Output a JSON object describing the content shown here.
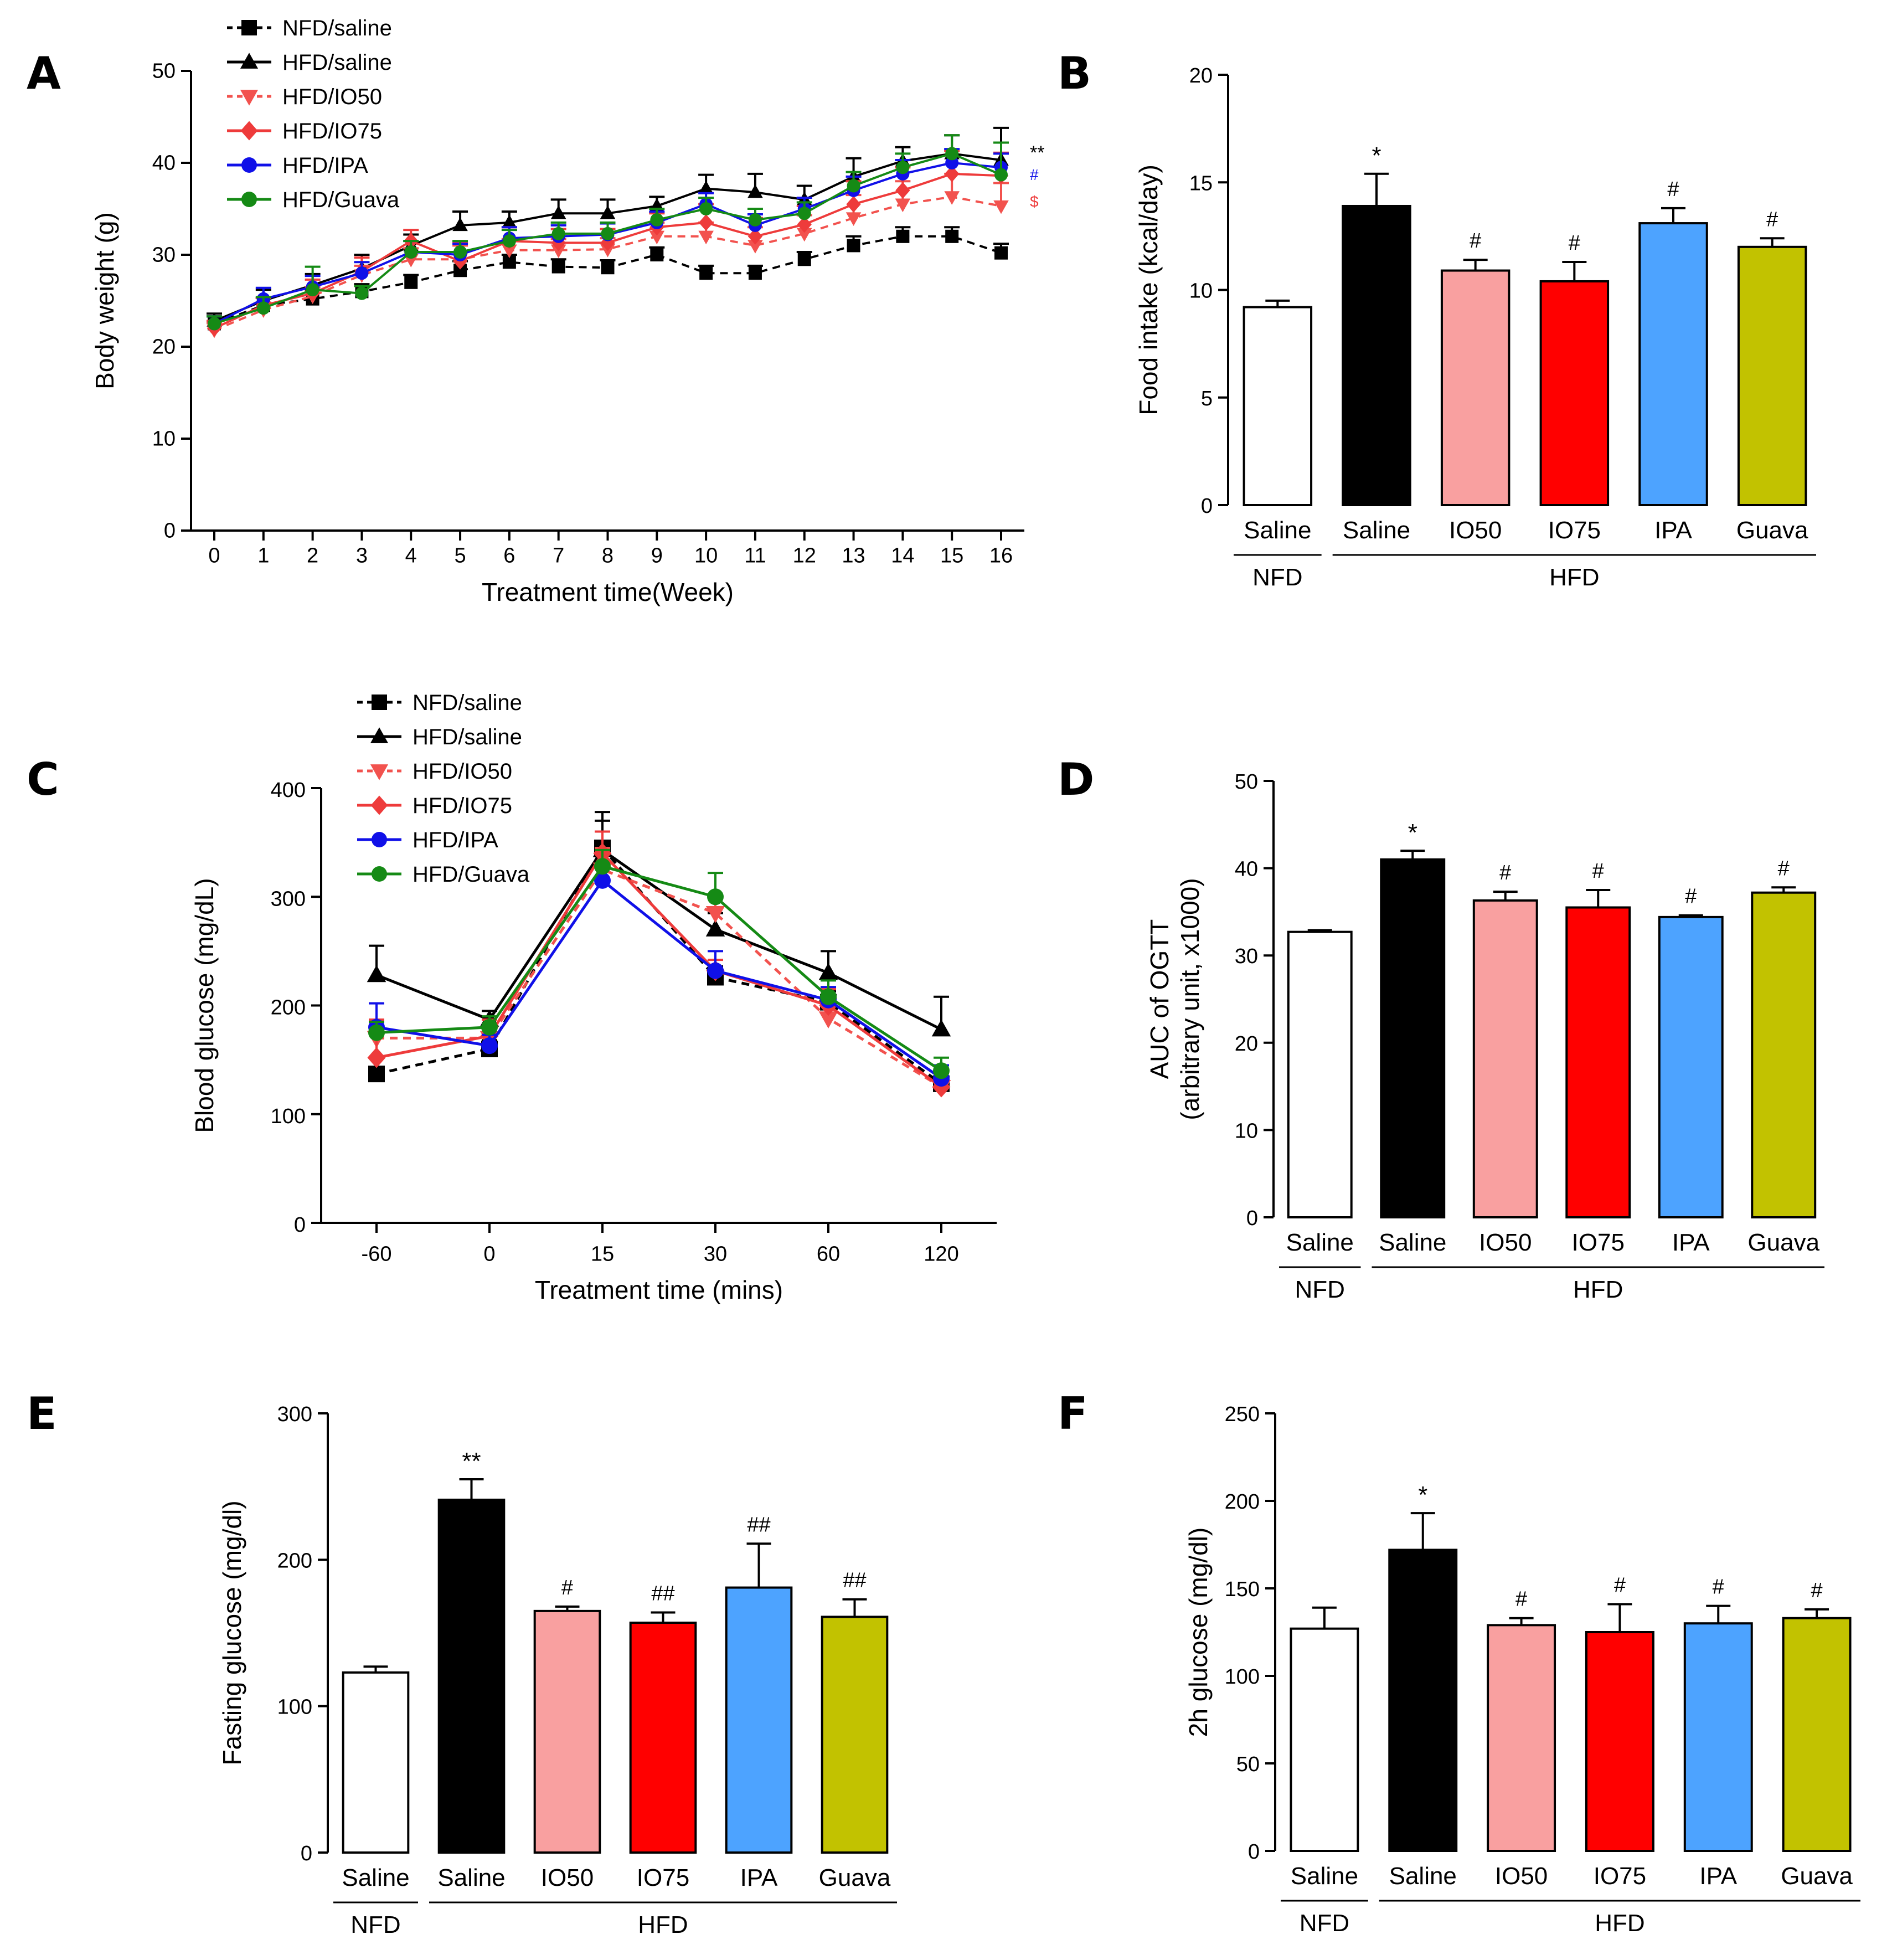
{
  "figure": {
    "panels": [
      "A",
      "B",
      "C",
      "D",
      "E",
      "F"
    ]
  },
  "colors": {
    "NFD": "#000000",
    "HFD_saline": "#000000",
    "IO50": "#F2524E",
    "IO75": "#EE3B3B",
    "IPA": "#1010E8",
    "Guava": "#158A15",
    "bar_NFD_saline": "#FFFFFF",
    "bar_HFD_saline": "#000000",
    "bar_IO50": "#F9A0A0",
    "bar_IO75": "#FF0000",
    "bar_IPA": "#4DA3FF",
    "bar_Guava": "#C2C200"
  },
  "legend": [
    "NFD/saline",
    "HFD/saline",
    "HFD/IO50",
    "HFD/IO75",
    "HFD/IPA",
    "HFD/Guava"
  ],
  "chart_data": [
    {
      "panel": "A",
      "type": "line",
      "xlabel": "Treatment time(Week)",
      "ylabel": "Body weight (g)",
      "ylim": [
        0,
        50
      ],
      "yticks": [
        "0",
        "10",
        "20",
        "30",
        "40",
        "50"
      ],
      "x": [
        "0",
        "1",
        "2",
        "3",
        "4",
        "5",
        "6",
        "7",
        "8",
        "9",
        "10",
        "11",
        "12",
        "13",
        "14",
        "15",
        "16"
      ],
      "series": [
        {
          "name": "NFD/saline",
          "values": [
            22.5,
            24.5,
            25.2,
            26,
            27,
            28.3,
            29.2,
            28.7,
            28.6,
            30,
            28,
            28,
            29.5,
            31,
            32,
            32,
            30.2
          ],
          "err": [
            0.8,
            0.8,
            1,
            0.8,
            0.8,
            1,
            0.8,
            0.8,
            0.8,
            0.8,
            0.8,
            0.8,
            0.8,
            1,
            1,
            1,
            1
          ]
        },
        {
          "name": "HFD/saline",
          "values": [
            22.8,
            25,
            26.7,
            28.5,
            31,
            33.2,
            33.5,
            34.5,
            34.5,
            35.3,
            37.2,
            36.8,
            36,
            38.5,
            40.2,
            41,
            40.3
          ],
          "err": [
            0.8,
            1.2,
            1.2,
            1.5,
            1.2,
            1.5,
            1.2,
            1.5,
            1.5,
            1,
            1.5,
            2,
            1.5,
            2,
            1.5,
            2,
            3.5
          ]
        },
        {
          "name": "HFD/IO50",
          "values": [
            21.8,
            24,
            25.5,
            27.8,
            29.5,
            29.5,
            30.5,
            30.5,
            30.6,
            32,
            32,
            31,
            32.3,
            34,
            35.5,
            36.3,
            35.3
          ],
          "err": [
            0.8,
            0.8,
            1,
            1,
            1.2,
            1.5,
            1.2,
            1.2,
            1.2,
            1.5,
            1.5,
            2,
            2,
            2.5,
            2.5,
            2.5,
            2.5
          ]
        },
        {
          "name": "HFD/IO75",
          "values": [
            22,
            24.5,
            25.8,
            28.2,
            31.5,
            29.3,
            31.5,
            31.3,
            31.3,
            33,
            33.5,
            32,
            33.3,
            35.5,
            37,
            38.8,
            38.6
          ],
          "err": [
            0.8,
            0.8,
            1.5,
            1.5,
            1.2,
            2,
            1.5,
            1.5,
            1.5,
            1.5,
            2,
            2,
            2,
            2.5,
            2.5,
            2.5,
            2.5
          ]
        },
        {
          "name": "HFD/IPA",
          "values": [
            22.5,
            25.2,
            26.5,
            28,
            30.3,
            30,
            31.8,
            32,
            32.2,
            33.5,
            35.5,
            33.2,
            35,
            37,
            38.8,
            40,
            39.5
          ],
          "err": [
            0.8,
            1.2,
            1.2,
            1.2,
            1.2,
            1.2,
            1.2,
            1.2,
            1.2,
            1.2,
            1.2,
            1.2,
            1.2,
            1.5,
            1.5,
            1.5,
            1.5
          ]
        },
        {
          "name": "HFD/Guava",
          "values": [
            22.5,
            24.2,
            26.2,
            25.8,
            30.3,
            30.3,
            31.5,
            32.3,
            32.3,
            33.8,
            35,
            33.8,
            34.5,
            37.5,
            39.5,
            41,
            38.7
          ],
          "err": [
            0.8,
            1.2,
            2.5,
            0.8,
            1.2,
            1.2,
            1.2,
            1.2,
            1.2,
            1.2,
            1.2,
            1.2,
            1.2,
            1.5,
            1.5,
            2,
            3.5
          ]
        }
      ],
      "annotations": [
        {
          "text": "**",
          "color": "#000000"
        },
        {
          "text": "#",
          "color": "#1010E8"
        },
        {
          "text": "$",
          "color": "#EE3B3B"
        }
      ]
    },
    {
      "panel": "B",
      "type": "bar",
      "ylabel": "Food intake (kcal/day)",
      "ylim": [
        0,
        20
      ],
      "yticks": [
        "0",
        "5",
        "10",
        "15",
        "20"
      ],
      "categories": [
        "Saline",
        "Saline",
        "IO50",
        "IO75",
        "IPA",
        "Guava"
      ],
      "values": [
        9.2,
        13.9,
        10.9,
        10.4,
        13.1,
        12
      ],
      "err": [
        0.3,
        1.5,
        0.5,
        0.9,
        0.7,
        0.4
      ],
      "sig": [
        "",
        "*",
        "#",
        "#",
        "#",
        "#"
      ],
      "groups": [
        {
          "label": "NFD",
          "from": 0,
          "to": 0
        },
        {
          "label": "HFD",
          "from": 1,
          "to": 5
        }
      ]
    },
    {
      "panel": "C",
      "type": "line",
      "xlabel": "Treatment time (mins)",
      "ylabel": "Blood glucose  (mg/dL)",
      "ylim": [
        0,
        400
      ],
      "yticks": [
        "0",
        "100",
        "200",
        "300",
        "400"
      ],
      "x": [
        "-60",
        "0",
        "15",
        "30",
        "60",
        "120"
      ],
      "series": [
        {
          "name": "NFD/saline",
          "values": [
            137,
            160,
            345,
            226,
            203,
            128
          ],
          "err": [
            15,
            8,
            25,
            10,
            10,
            10
          ]
        },
        {
          "name": "HFD/saline",
          "values": [
            228,
            187,
            343,
            270,
            230,
            178
          ],
          "err": [
            27,
            8,
            35,
            15,
            20,
            30
          ]
        },
        {
          "name": "HFD/IO50",
          "values": [
            170,
            170,
            325,
            285,
            188,
            125
          ],
          "err": [
            15,
            10,
            20,
            15,
            12,
            15
          ]
        },
        {
          "name": "HFD/IO75",
          "values": [
            152,
            172,
            340,
            232,
            200,
            125
          ],
          "err": [
            35,
            15,
            20,
            10,
            15,
            15
          ]
        },
        {
          "name": "HFD/IPA",
          "values": [
            180,
            163,
            315,
            232,
            205,
            133
          ],
          "err": [
            22,
            10,
            15,
            18,
            12,
            12
          ]
        },
        {
          "name": "HFD/Guava",
          "values": [
            175,
            180,
            328,
            300,
            208,
            140
          ],
          "err": [
            10,
            10,
            15,
            22,
            15,
            12
          ]
        }
      ]
    },
    {
      "panel": "D",
      "type": "bar",
      "ylabel": "AUC of OGTT",
      "ylabel2": "(arbitrary unit, x1000)",
      "ylim": [
        0,
        50
      ],
      "yticks": [
        "0",
        "10",
        "20",
        "30",
        "40",
        "50"
      ],
      "categories": [
        "Saline",
        "Saline",
        "IO50",
        "IO75",
        "IPA",
        "Guava"
      ],
      "values": [
        32.7,
        41,
        36.3,
        35.5,
        34.4,
        37.2
      ],
      "err": [
        0.2,
        1,
        1,
        2,
        0.2,
        0.6
      ],
      "sig": [
        "",
        "*",
        "#",
        "#",
        "#",
        "#"
      ],
      "groups": [
        {
          "label": "NFD",
          "from": 0,
          "to": 0
        },
        {
          "label": "HFD",
          "from": 1,
          "to": 5
        }
      ]
    },
    {
      "panel": "E",
      "type": "bar",
      "ylabel": "Fasting glucose (mg/dl)",
      "ylim": [
        0,
        300
      ],
      "yticks": [
        "0",
        "100",
        "200",
        "300"
      ],
      "categories": [
        "Saline",
        "Saline",
        "IO50",
        "IO75",
        "IPA",
        "Guava"
      ],
      "values": [
        123,
        241,
        165,
        157,
        181,
        161
      ],
      "err": [
        4,
        14,
        3,
        7,
        30,
        12
      ],
      "sig": [
        "",
        "**",
        "#",
        "##",
        "##",
        "##"
      ],
      "groups": [
        {
          "label": "NFD",
          "from": 0,
          "to": 0
        },
        {
          "label": "HFD",
          "from": 1,
          "to": 5
        }
      ]
    },
    {
      "panel": "F",
      "type": "bar",
      "ylabel": "2h glucose (mg/dl)",
      "ylim": [
        0,
        250
      ],
      "yticks": [
        "0",
        "50",
        "100",
        "150",
        "200",
        "250"
      ],
      "categories": [
        "Saline",
        "Saline",
        "IO50",
        "IO75",
        "IPA",
        "Guava"
      ],
      "values": [
        127,
        172,
        129,
        125,
        130,
        133
      ],
      "err": [
        12,
        21,
        4,
        16,
        10,
        5
      ],
      "sig": [
        "",
        "*",
        "#",
        "#",
        "#",
        "#"
      ],
      "groups": [
        {
          "label": "NFD",
          "from": 0,
          "to": 0
        },
        {
          "label": "HFD",
          "from": 1,
          "to": 5
        }
      ]
    }
  ]
}
